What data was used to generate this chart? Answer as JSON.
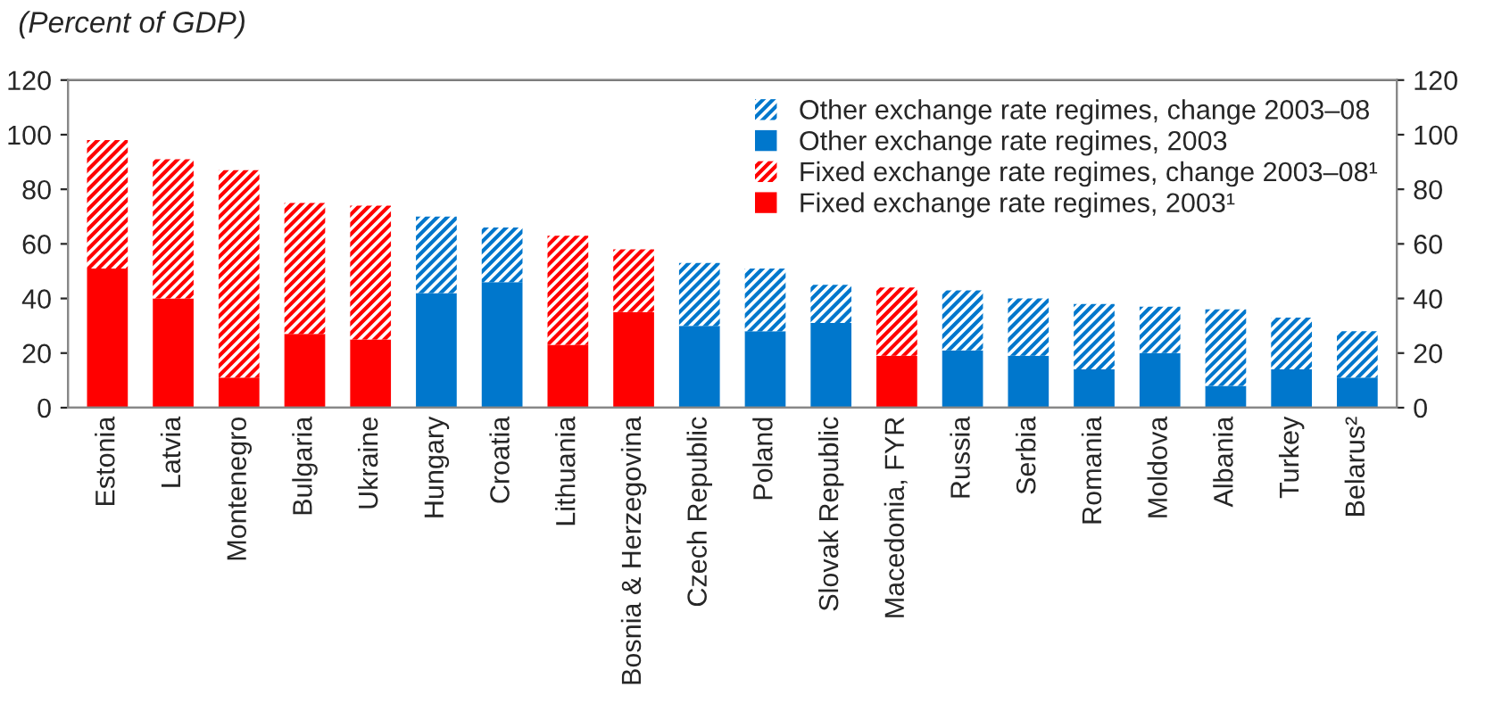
{
  "chart_data": {
    "type": "bar",
    "title": "(Percent of GDP)",
    "stacked": true,
    "categories": [
      "Estonia",
      "Latvia",
      "Montenegro",
      "Bulgaria",
      "Ukraine",
      "Hungary",
      "Croatia",
      "Lithuania",
      "Bosnia & Herzegovina",
      "Czech Republic",
      "Poland",
      "Slovak Republic",
      "Macedonia, FYR",
      "Russia",
      "Serbia",
      "Romania",
      "Moldova",
      "Albania",
      "Turkey",
      "Belarus²"
    ],
    "series": [
      {
        "name": "Fixed exchange rate regimes, 2003¹",
        "color": "#ff0000",
        "values": [
          51,
          40,
          11,
          27,
          25,
          null,
          null,
          23,
          35,
          null,
          null,
          null,
          19,
          null,
          null,
          null,
          null,
          null,
          null,
          null
        ]
      },
      {
        "name": "Fixed exchange rate regimes, change 2003–08¹",
        "color": "#ff0000",
        "values": [
          47,
          51,
          76,
          48,
          49,
          null,
          null,
          40,
          23,
          null,
          null,
          null,
          25,
          null,
          null,
          null,
          null,
          null,
          null,
          null
        ]
      },
      {
        "name": "Other exchange rate regimes, 2003",
        "color": "#0077cc",
        "values": [
          null,
          null,
          null,
          null,
          null,
          42,
          46,
          null,
          null,
          30,
          28,
          31,
          null,
          21,
          19,
          14,
          20,
          8,
          14,
          11
        ]
      },
      {
        "name": "Other exchange rate regimes, change 2003–08",
        "color": "#0077cc",
        "values": [
          null,
          null,
          null,
          null,
          null,
          28,
          20,
          null,
          null,
          23,
          23,
          14,
          null,
          22,
          21,
          24,
          17,
          28,
          19,
          17
        ]
      }
    ],
    "ylim": [
      0,
      120
    ],
    "yticks": [
      0,
      20,
      40,
      60,
      80,
      100,
      120
    ],
    "y2lim": [
      0,
      120
    ],
    "y2ticks": [
      0,
      20,
      40,
      60,
      80,
      100,
      120
    ],
    "legend": "top right"
  }
}
